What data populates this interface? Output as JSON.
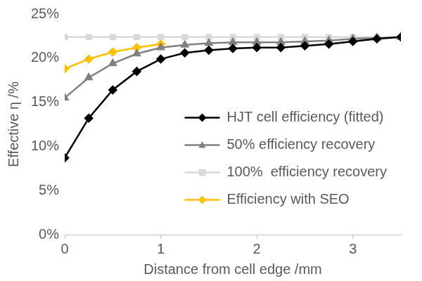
{
  "chart_data": {
    "type": "line",
    "x_label": "Distance from cell edge /mm",
    "y_label": "Effective η /%",
    "x": [
      0,
      0.25,
      0.5,
      0.75,
      1,
      1.25,
      1.5,
      1.75,
      2,
      2.25,
      2.5,
      2.75,
      3,
      3.25,
      3.5
    ],
    "series": [
      {
        "name": "HJT cell efficiency (fitted)",
        "color": "#000000",
        "marker": "diamond",
        "values": [
          8.7,
          13.2,
          16.4,
          18.5,
          19.9,
          20.6,
          20.9,
          21.1,
          21.2,
          21.2,
          21.4,
          21.6,
          21.9,
          22.2,
          22.4
        ]
      },
      {
        "name": "50% efficiency recovery",
        "color": "#808080",
        "marker": "triangle",
        "values": [
          15.5,
          17.8,
          19.4,
          20.5,
          21.2,
          21.5,
          21.7,
          21.8,
          21.8,
          21.8,
          21.9,
          22.0,
          22.2,
          22.3,
          22.4
        ]
      },
      {
        "name": "100%  efficiency recovery",
        "color": "#d9d9d9",
        "marker": "square",
        "values": [
          22.4,
          22.4,
          22.4,
          22.4,
          22.4,
          22.4,
          22.4,
          22.4,
          22.4,
          22.4,
          22.4,
          22.4,
          22.4,
          22.4,
          null
        ]
      },
      {
        "name": "Efficiency with SEO",
        "color": "#ffc000",
        "marker": "diamond",
        "values": [
          18.8,
          19.9,
          20.7,
          21.2,
          21.6,
          null,
          null,
          null,
          null,
          null,
          null,
          null,
          null,
          null,
          null
        ]
      }
    ],
    "xlim": [
      0,
      3.5
    ],
    "xticks": [
      0,
      1,
      2,
      3
    ],
    "ylim": [
      0,
      25
    ],
    "yticks": [
      {
        "value": 0,
        "label": "0%"
      },
      {
        "value": 5,
        "label": "5%"
      },
      {
        "value": 10,
        "label": "10%"
      },
      {
        "value": 15,
        "label": "15%"
      },
      {
        "value": 20,
        "label": "20%"
      },
      {
        "value": 25,
        "label": "25%"
      }
    ],
    "grid": false,
    "legend": "right"
  }
}
